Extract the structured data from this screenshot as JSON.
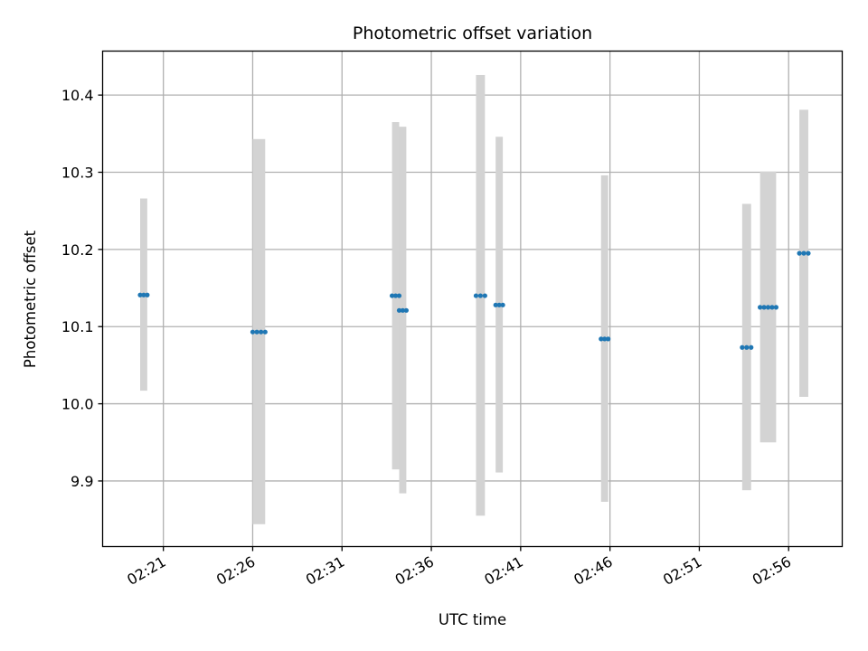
{
  "chart_data": {
    "type": "scatter",
    "title": "Photometric offset variation",
    "xlabel": "UTC time",
    "ylabel": "Photometric offset",
    "x_axis": "time",
    "xlim": [
      "02:17:36",
      "02:59:00"
    ],
    "ylim": [
      9.815,
      10.457
    ],
    "x_ticks": [
      "02:21",
      "02:26",
      "02:31",
      "02:36",
      "02:41",
      "02:46",
      "02:51",
      "02:56"
    ],
    "y_ticks": [
      9.9,
      10.0,
      10.1,
      10.2,
      10.3,
      10.4
    ],
    "y_tick_labels": [
      "9.9",
      "10.0",
      "10.1",
      "10.2",
      "10.3",
      "10.4"
    ],
    "grid": true,
    "colors": {
      "points": "#1f77b4",
      "error_band": "#d3d3d3",
      "grid": "#b0b0b0"
    },
    "series": [
      {
        "points": [
          {
            "start": "02:19:42",
            "end": "02:20:06",
            "y": 10.141,
            "low": 10.017,
            "high": 10.266
          },
          {
            "start": "02:26:00",
            "end": "02:26:42",
            "y": 10.093,
            "low": 9.844,
            "high": 10.343
          },
          {
            "start": "02:33:48",
            "end": "02:34:12",
            "y": 10.14,
            "low": 9.915,
            "high": 10.365
          },
          {
            "start": "02:34:12",
            "end": "02:34:36",
            "y": 10.121,
            "low": 9.884,
            "high": 10.359
          },
          {
            "start": "02:38:30",
            "end": "02:39:00",
            "y": 10.14,
            "low": 9.855,
            "high": 10.426
          },
          {
            "start": "02:39:36",
            "end": "02:40:00",
            "y": 10.128,
            "low": 9.911,
            "high": 10.346
          },
          {
            "start": "02:45:30",
            "end": "02:45:54",
            "y": 10.084,
            "low": 9.873,
            "high": 10.296
          },
          {
            "start": "02:53:24",
            "end": "02:53:54",
            "y": 10.073,
            "low": 9.888,
            "high": 10.259
          },
          {
            "start": "02:54:24",
            "end": "02:55:18",
            "y": 10.125,
            "low": 9.95,
            "high": 10.301
          },
          {
            "start": "02:56:36",
            "end": "02:57:06",
            "y": 10.195,
            "low": 10.009,
            "high": 10.381
          }
        ]
      }
    ]
  }
}
